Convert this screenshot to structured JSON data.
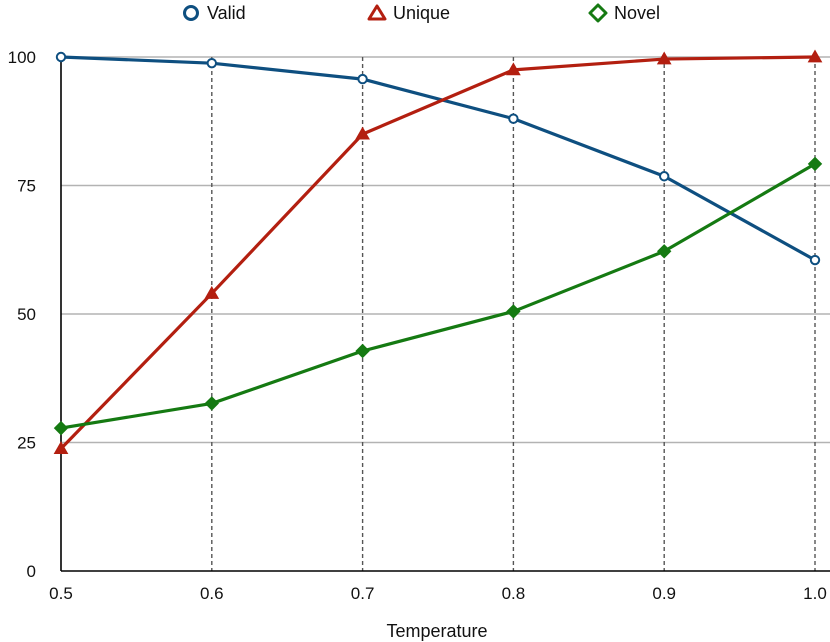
{
  "chart_data": {
    "type": "line",
    "title": "",
    "xlabel": "Temperature",
    "ylabel": "",
    "x": [
      0.5,
      0.6,
      0.7,
      0.8,
      0.9,
      1.0
    ],
    "x_tick_labels": [
      "0.5",
      "0.6",
      "0.7",
      "0.8",
      "0.9",
      "1.0"
    ],
    "y_ticks": [
      0,
      25,
      50,
      75,
      100
    ],
    "y_tick_labels": [
      "0",
      "25",
      "50",
      "75",
      "100"
    ],
    "xlim": [
      0.5,
      1.0
    ],
    "ylim": [
      0,
      100
    ],
    "grid": {
      "horizontal": "solid",
      "vertical": "dashed"
    },
    "legend_position": "top",
    "series": [
      {
        "name": "Valid",
        "marker": "circle",
        "color": "#0e4f80",
        "values": [
          100,
          98.8,
          95.7,
          88,
          76.8,
          60.5
        ]
      },
      {
        "name": "Unique",
        "marker": "triangle",
        "color": "#b31f10",
        "values": [
          23.8,
          54,
          85,
          97.5,
          99.6,
          100
        ]
      },
      {
        "name": "Novel",
        "marker": "diamond",
        "color": "#157a12",
        "values": [
          27.8,
          32.6,
          42.8,
          50.5,
          62.2,
          79.2
        ]
      }
    ]
  }
}
